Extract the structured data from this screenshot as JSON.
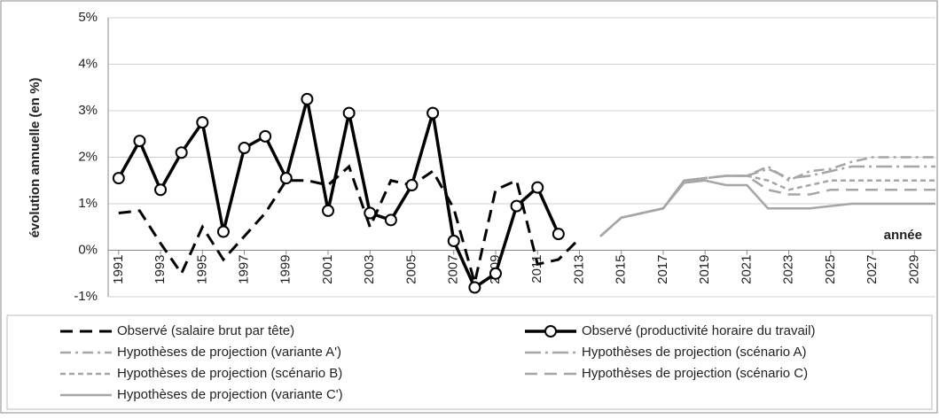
{
  "chart_data": {
    "type": "line",
    "y_label": "évolution annuelle (en %)",
    "annotation": "année",
    "x": [
      1991,
      1992,
      1993,
      1994,
      1995,
      1996,
      1997,
      1998,
      1999,
      2000,
      2001,
      2002,
      2003,
      2004,
      2005,
      2006,
      2007,
      2008,
      2009,
      2010,
      2011,
      2012,
      2013,
      2014,
      2015,
      2016,
      2017,
      2018,
      2019,
      2020,
      2021,
      2022,
      2023,
      2024,
      2025,
      2026,
      2027,
      2028,
      2029,
      2030
    ],
    "xlim": [
      1990.5,
      2030
    ],
    "xticks": [
      1991,
      1993,
      1995,
      1997,
      1999,
      2001,
      2003,
      2005,
      2007,
      2009,
      2011,
      2013,
      2015,
      2017,
      2019,
      2021,
      2023,
      2025,
      2027,
      2029
    ],
    "ylim": [
      -1,
      5
    ],
    "yticks": [
      {
        "value": -1,
        "label": "-1%"
      },
      {
        "value": 0,
        "label": "0%"
      },
      {
        "value": 1,
        "label": "1%"
      },
      {
        "value": 2,
        "label": "2%"
      },
      {
        "value": 3,
        "label": "3%"
      },
      {
        "value": 4,
        "label": "4%"
      },
      {
        "value": 5,
        "label": "5%"
      }
    ],
    "grid": true,
    "series": [
      {
        "name": "Observé (salaire brut par tête)",
        "color": "#000000",
        "line_style": "dashed",
        "marker": "none",
        "values": [
          0.8,
          0.85,
          0.15,
          -0.5,
          0.5,
          -0.2,
          0.3,
          0.8,
          1.5,
          1.5,
          1.4,
          1.8,
          0.5,
          1.5,
          1.4,
          1.7,
          0.9,
          -0.7,
          1.3,
          1.5,
          -0.3,
          -0.2,
          0.25,
          null,
          null,
          null,
          null,
          null,
          null,
          null,
          null,
          null,
          null,
          null,
          null,
          null,
          null,
          null,
          null,
          null
        ]
      },
      {
        "name": "Observé (productivité horaire du travail)",
        "color": "#000000",
        "line_style": "solid",
        "marker": "circle",
        "values": [
          1.55,
          2.35,
          1.3,
          2.1,
          2.75,
          0.4,
          2.2,
          2.45,
          1.55,
          3.25,
          0.85,
          2.95,
          0.8,
          0.65,
          1.4,
          2.95,
          0.2,
          -0.8,
          -0.5,
          0.95,
          1.35,
          0.35,
          null,
          null,
          null,
          null,
          null,
          null,
          null,
          null,
          null,
          null,
          null,
          null,
          null,
          null,
          null,
          null,
          null,
          null
        ]
      },
      {
        "name": "Hypothèses de projection (variante A')",
        "color": "#a6a6a6",
        "line_style": "dash-dot",
        "marker": "none",
        "values": [
          null,
          null,
          null,
          null,
          null,
          null,
          null,
          null,
          null,
          null,
          null,
          null,
          null,
          null,
          null,
          null,
          null,
          null,
          null,
          null,
          null,
          null,
          null,
          0.3,
          0.7,
          0.8,
          0.9,
          1.5,
          1.55,
          1.6,
          1.6,
          1.8,
          1.5,
          1.7,
          1.75,
          1.9,
          2.0,
          2.0,
          2.0,
          2.0
        ]
      },
      {
        "name": "Hypothèses de projection (scénario A)",
        "color": "#a6a6a6",
        "line_style": "long-dash-dot",
        "marker": "none",
        "values": [
          null,
          null,
          null,
          null,
          null,
          null,
          null,
          null,
          null,
          null,
          null,
          null,
          null,
          null,
          null,
          null,
          null,
          null,
          null,
          null,
          null,
          null,
          null,
          0.3,
          0.7,
          0.8,
          0.9,
          1.5,
          1.55,
          1.6,
          1.6,
          1.75,
          1.55,
          1.6,
          1.7,
          1.8,
          1.8,
          1.8,
          1.8,
          1.8
        ]
      },
      {
        "name": "Hypothèses de projection (scénario B)",
        "color": "#a6a6a6",
        "line_style": "short-dash",
        "marker": "none",
        "values": [
          null,
          null,
          null,
          null,
          null,
          null,
          null,
          null,
          null,
          null,
          null,
          null,
          null,
          null,
          null,
          null,
          null,
          null,
          null,
          null,
          null,
          null,
          null,
          0.3,
          0.7,
          0.8,
          0.9,
          1.5,
          1.55,
          1.6,
          1.6,
          1.5,
          1.3,
          1.4,
          1.5,
          1.5,
          1.5,
          1.5,
          1.5,
          1.5
        ]
      },
      {
        "name": "Hypothèses de projection (scénario C)",
        "color": "#a6a6a6",
        "line_style": "dashed",
        "marker": "none",
        "values": [
          null,
          null,
          null,
          null,
          null,
          null,
          null,
          null,
          null,
          null,
          null,
          null,
          null,
          null,
          null,
          null,
          null,
          null,
          null,
          null,
          null,
          null,
          null,
          0.3,
          0.7,
          0.8,
          0.9,
          1.5,
          1.55,
          1.6,
          1.6,
          1.3,
          1.2,
          1.2,
          1.3,
          1.3,
          1.3,
          1.3,
          1.3,
          1.3
        ]
      },
      {
        "name": "Hypothèses de projection (variante C')",
        "color": "#a6a6a6",
        "line_style": "solid",
        "marker": "none",
        "values": [
          null,
          null,
          null,
          null,
          null,
          null,
          null,
          null,
          null,
          null,
          null,
          null,
          null,
          null,
          null,
          null,
          null,
          null,
          null,
          null,
          null,
          null,
          null,
          0.3,
          0.7,
          0.8,
          0.9,
          1.45,
          1.5,
          1.4,
          1.4,
          0.9,
          0.9,
          0.9,
          0.95,
          1.0,
          1.0,
          1.0,
          1.0,
          1.0
        ]
      }
    ]
  }
}
